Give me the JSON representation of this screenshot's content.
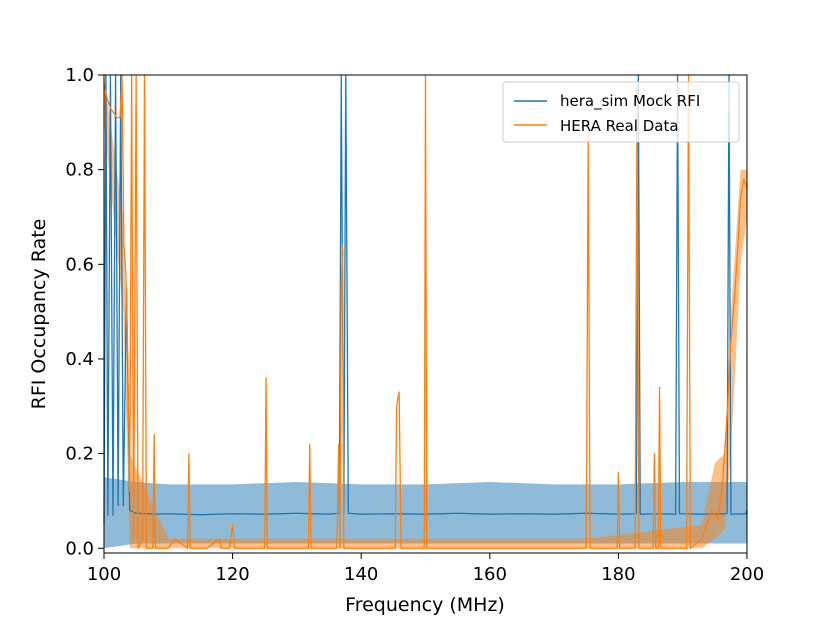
{
  "chart_data": {
    "type": "line",
    "title": "",
    "xlabel": "Frequency (MHz)",
    "ylabel": "RFI Occupancy Rate",
    "xlim": [
      100,
      200
    ],
    "ylim": [
      -0.01,
      1.0
    ],
    "xticks": [
      100,
      120,
      140,
      160,
      180,
      200
    ],
    "xtick_labels": [
      "100",
      "120",
      "140",
      "160",
      "180",
      "200"
    ],
    "yticks": [
      0.0,
      0.2,
      0.4,
      0.6,
      0.8,
      1.0
    ],
    "ytick_labels": [
      "0.0",
      "0.2",
      "0.4",
      "0.6",
      "0.8",
      "1.0"
    ],
    "grid": false,
    "legend_position": "upper right",
    "series": [
      {
        "name": "hera_sim Mock RFI",
        "color": "#1f77b4",
        "band_color": "#1f77b4",
        "band_opacity": 0.5,
        "points": [
          [
            100.0,
            0.05
          ],
          [
            100.3,
            1.0
          ],
          [
            100.6,
            0.07
          ],
          [
            101.0,
            1.0
          ],
          [
            101.4,
            0.07
          ],
          [
            101.8,
            1.0
          ],
          [
            102.2,
            0.09
          ],
          [
            102.6,
            1.0
          ],
          [
            103.0,
            0.09
          ],
          [
            103.5,
            0.55
          ],
          [
            104.0,
            0.08
          ],
          [
            105,
            0.074
          ],
          [
            108,
            0.072
          ],
          [
            110,
            0.073
          ],
          [
            115,
            0.071
          ],
          [
            120,
            0.073
          ],
          [
            125,
            0.072
          ],
          [
            130,
            0.074
          ],
          [
            135,
            0.072
          ],
          [
            136.6,
            0.074
          ],
          [
            136.9,
            1.0
          ],
          [
            137.3,
            0.07
          ],
          [
            137.6,
            1.0
          ],
          [
            138.0,
            0.074
          ],
          [
            140,
            0.072
          ],
          [
            145,
            0.073
          ],
          [
            150,
            0.072
          ],
          [
            155,
            0.074
          ],
          [
            160,
            0.072
          ],
          [
            165,
            0.073
          ],
          [
            170,
            0.072
          ],
          [
            175,
            0.074
          ],
          [
            180,
            0.072
          ],
          [
            182.8,
            0.073
          ],
          [
            183.1,
            1.0
          ],
          [
            183.4,
            0.072
          ],
          [
            186,
            0.073
          ],
          [
            188.9,
            0.072
          ],
          [
            189.2,
            1.0
          ],
          [
            189.5,
            0.073
          ],
          [
            193,
            0.072
          ],
          [
            196.9,
            0.073
          ],
          [
            197.2,
            1.0
          ],
          [
            197.5,
            0.072
          ],
          [
            199.8,
            0.073
          ],
          [
            200.0,
            0.08
          ]
        ],
        "band": [
          [
            100.0,
            0.0,
            0.15
          ],
          [
            105,
            0.01,
            0.14
          ],
          [
            110,
            0.01,
            0.135
          ],
          [
            120,
            0.01,
            0.135
          ],
          [
            130,
            0.01,
            0.14
          ],
          [
            140,
            0.01,
            0.135
          ],
          [
            150,
            0.01,
            0.135
          ],
          [
            160,
            0.01,
            0.14
          ],
          [
            170,
            0.01,
            0.135
          ],
          [
            180,
            0.01,
            0.135
          ],
          [
            190,
            0.01,
            0.14
          ],
          [
            200,
            0.01,
            0.14
          ]
        ]
      },
      {
        "name": "HERA Real Data",
        "color": "#ff7f0e",
        "band_color": "#ff7f0e",
        "band_opacity": 0.5,
        "points": [
          [
            100.0,
            0.98
          ],
          [
            100.5,
            0.95
          ],
          [
            101.0,
            0.93
          ],
          [
            101.5,
            0.92
          ],
          [
            102.0,
            0.91
          ],
          [
            102.5,
            0.91
          ],
          [
            102.8,
            1.0
          ],
          [
            103.1,
            0.64
          ],
          [
            103.4,
            0.58
          ],
          [
            103.7,
            0.4
          ],
          [
            104.0,
            0.12
          ],
          [
            104.3,
            1.0
          ],
          [
            104.6,
            0.02
          ],
          [
            105.0,
            1.0
          ],
          [
            105.3,
            0.0
          ],
          [
            106.0,
            0.02
          ],
          [
            106.3,
            1.0
          ],
          [
            106.6,
            0.0
          ],
          [
            107.6,
            0.0
          ],
          [
            107.8,
            0.24
          ],
          [
            108.0,
            0.0
          ],
          [
            110,
            0.0
          ],
          [
            111,
            0.02
          ],
          [
            113.0,
            0.0
          ],
          [
            113.2,
            0.2
          ],
          [
            113.4,
            0.0
          ],
          [
            116,
            0.0
          ],
          [
            118,
            0.02
          ],
          [
            118.2,
            0.0
          ],
          [
            119.5,
            0.0
          ],
          [
            120,
            0.05
          ],
          [
            120.3,
            0.0
          ],
          [
            125.0,
            0.0
          ],
          [
            125.2,
            0.36
          ],
          [
            125.4,
            0.0
          ],
          [
            130,
            0.0
          ],
          [
            131.8,
            0.0
          ],
          [
            132.0,
            0.22
          ],
          [
            132.2,
            0.0
          ],
          [
            136.2,
            0.0
          ],
          [
            136.5,
            0.22
          ],
          [
            136.7,
            0.0
          ],
          [
            136.9,
            0.55
          ],
          [
            137.1,
            0.64
          ],
          [
            137.3,
            0.0
          ],
          [
            140,
            0.0
          ],
          [
            145.3,
            0.0
          ],
          [
            145.5,
            0.3
          ],
          [
            145.9,
            0.33
          ],
          [
            146.2,
            0.0
          ],
          [
            148,
            0.0
          ],
          [
            149.8,
            0.0
          ],
          [
            150.0,
            1.0
          ],
          [
            150.2,
            0.0
          ],
          [
            155,
            0.0
          ],
          [
            160,
            0.0
          ],
          [
            165,
            0.0
          ],
          [
            170,
            0.0
          ],
          [
            175.0,
            0.0
          ],
          [
            175.3,
            0.87
          ],
          [
            175.6,
            0.0
          ],
          [
            178,
            0.0
          ],
          [
            179.8,
            0.0
          ],
          [
            180.0,
            0.16
          ],
          [
            180.2,
            0.0
          ],
          [
            182.6,
            0.0
          ],
          [
            182.9,
            0.98
          ],
          [
            183.2,
            0.0
          ],
          [
            185.4,
            0.0
          ],
          [
            185.6,
            0.2
          ],
          [
            185.8,
            0.0
          ],
          [
            186.2,
            0.0
          ],
          [
            186.4,
            0.34
          ],
          [
            186.6,
            0.0
          ],
          [
            188,
            0.0
          ],
          [
            190.6,
            0.0
          ],
          [
            190.9,
            1.0
          ],
          [
            191.2,
            0.0
          ],
          [
            193,
            0.02
          ],
          [
            194.5,
            0.08
          ],
          [
            195.5,
            0.06
          ],
          [
            196.2,
            0.14
          ],
          [
            197.0,
            0.3
          ],
          [
            197.5,
            0.44
          ],
          [
            198.0,
            0.52
          ],
          [
            198.5,
            0.62
          ],
          [
            199.0,
            0.74
          ],
          [
            199.5,
            0.78
          ],
          [
            200.0,
            0.76
          ]
        ],
        "band": [
          [
            100.0,
            0.9,
            1.0
          ],
          [
            103.0,
            0.5,
            0.7
          ],
          [
            104.0,
            0.0,
            0.2
          ],
          [
            110,
            0.0,
            0.02
          ],
          [
            150,
            0.0,
            0.02
          ],
          [
            175,
            0.0,
            0.02
          ],
          [
            193,
            0.0,
            0.05
          ],
          [
            195,
            0.02,
            0.18
          ],
          [
            196.5,
            0.04,
            0.2
          ],
          [
            197.5,
            0.2,
            0.5
          ],
          [
            199,
            0.6,
            0.8
          ],
          [
            200,
            0.7,
            0.8
          ]
        ]
      }
    ]
  }
}
